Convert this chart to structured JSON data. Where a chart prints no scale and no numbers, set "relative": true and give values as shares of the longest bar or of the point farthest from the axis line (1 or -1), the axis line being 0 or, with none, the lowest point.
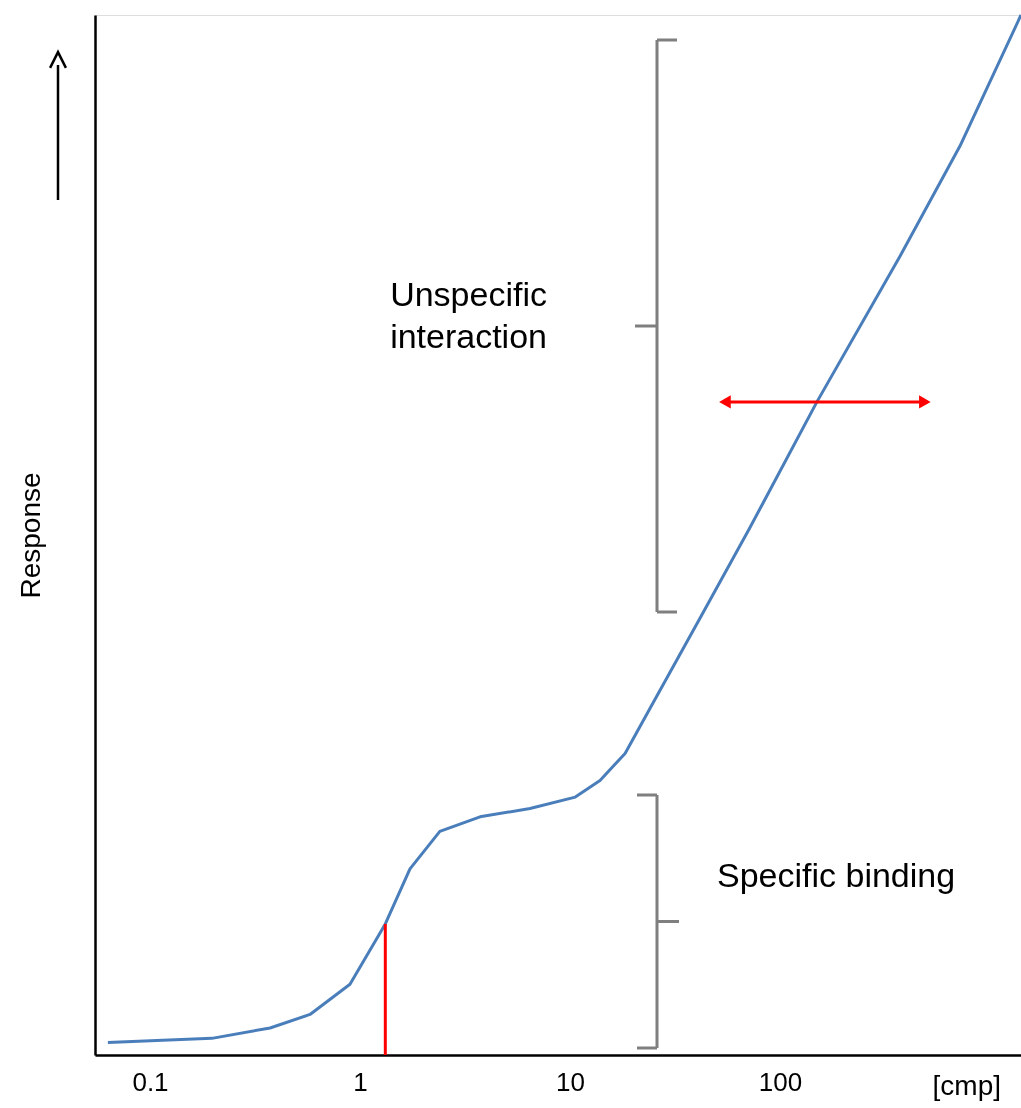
{
  "chart_data": {
    "type": "line",
    "relative": true,
    "ylabel": "Response",
    "xlabel": "[cmp]",
    "log": "x",
    "xlim": [
      0.0547,
      1406
    ],
    "xticks": [
      0.1,
      1,
      10,
      100
    ],
    "series": [
      {
        "color": "#4a7ebb",
        "x": [
          0.063,
          0.197,
          0.373,
          0.578,
          0.896,
          1.32,
          1.73,
          2.4,
          3.73,
          6.45,
          10.6,
          13.9,
          18.3,
          24.0,
          41.6,
          71.9,
          150,
          373,
          720,
          1406
        ],
        "values": [
          0.012,
          0.016,
          0.026,
          0.039,
          0.068,
          0.126,
          0.179,
          0.215,
          0.229,
          0.237,
          0.248,
          0.264,
          0.29,
          0.333,
          0.42,
          0.507,
          0.628,
          0.768,
          0.874,
          1.0
        ]
      },
      {
        "color": "#ff0000",
        "x": [
          1.32,
          1.32
        ],
        "values": [
          0,
          0.126
        ]
      },
      {
        "color": "#ff0000",
        "marker": "triangle",
        "x": [
          54.7,
          490
        ],
        "values": [
          0.628,
          0.628
        ]
      }
    ],
    "annotations": [
      "Unspecific\ninteraction",
      "Specific binding"
    ]
  }
}
